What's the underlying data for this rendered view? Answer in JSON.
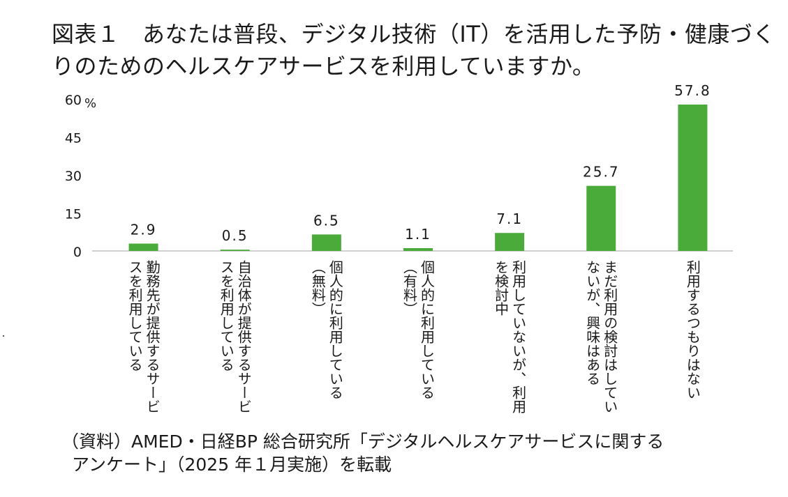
{
  "title": {
    "line1": "図表１　あなたは普段、デジタル技術（IT）を活用した予防・健康づく",
    "line2": "りのためのヘルスケアサービスを利用していますか。"
  },
  "source": {
    "line1": "（資料）AMED・日経BP 総合研究所「デジタルヘルスケアサービスに関する",
    "line2": "アンケート」（2025 年１月実施）を転載"
  },
  "colors": {
    "bar": "#4aab3a",
    "axis": "#bfbfbf",
    "text": "#1a1a1a"
  },
  "chart_data": {
    "type": "bar",
    "y_unit": "%",
    "ylim": [
      0,
      60
    ],
    "yticks": [
      0,
      15,
      30,
      45,
      60
    ],
    "grid": false,
    "legend": "none",
    "categories": [
      [
        "勤務先が提供するサービ",
        "スを利用している"
      ],
      [
        "自治体が提供するサービ",
        "スを利用している"
      ],
      [
        "個人的に利用している",
        "（無料）"
      ],
      [
        "個人的に利用している",
        "（有料）"
      ],
      [
        "利用していないが、利用",
        "を検討中"
      ],
      [
        "まだ利用の検討はしてい",
        "ないが、興味はある"
      ],
      [
        "利用するつもりはない"
      ]
    ],
    "values": [
      2.9,
      0.5,
      6.5,
      1.1,
      7.1,
      25.7,
      57.8
    ],
    "value_labels": [
      "2.9",
      "0.5",
      "6.5",
      "1.1",
      "7.1",
      "25.7",
      "57.8"
    ]
  }
}
